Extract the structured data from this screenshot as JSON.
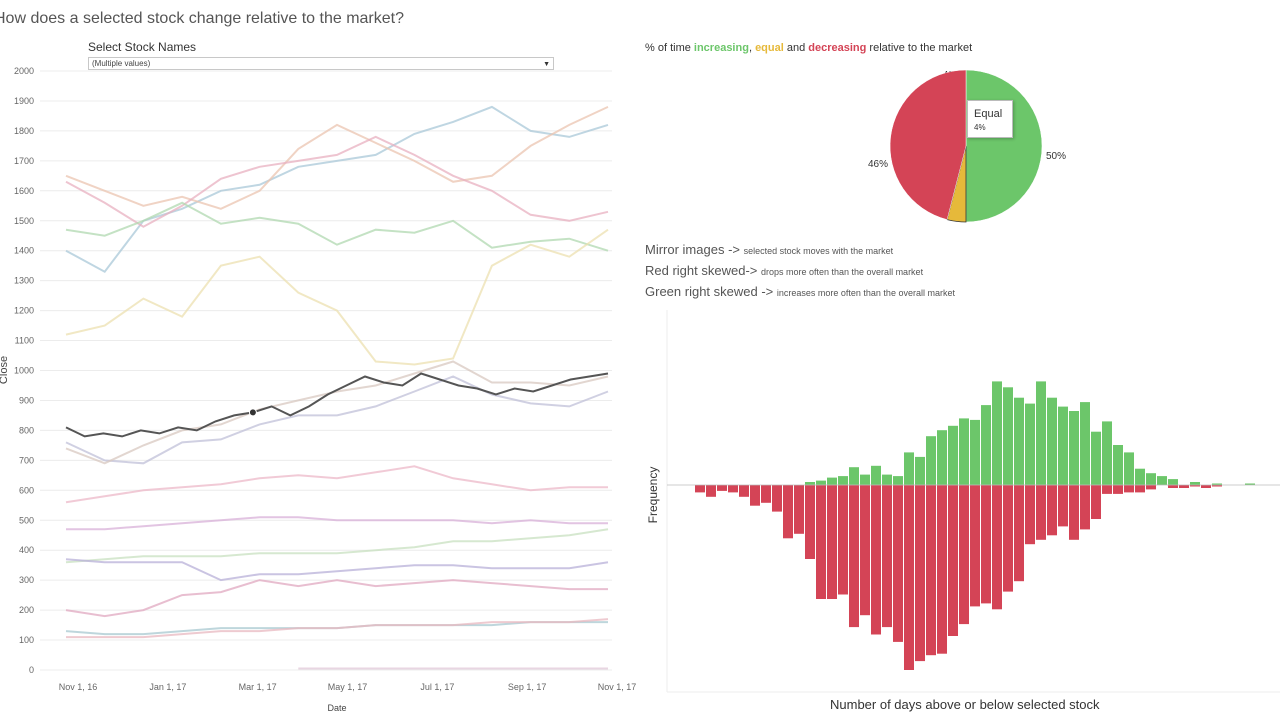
{
  "title": "How does a selected stock change relative to the market?",
  "filter": {
    "label": "Select Stock Names",
    "value": "(Multiple values)"
  },
  "pie_title": {
    "prefix": "% of time ",
    "inc": "increasing",
    "sep1": ", ",
    "eq": "equal",
    "sep2": " and ",
    "dec": "decreasing",
    "suffix": " relative to the market"
  },
  "tooltip": {
    "label": "Equal",
    "value": "4%"
  },
  "notes": [
    {
      "big": "Mirror images -> ",
      "small": "selected stock moves with the market"
    },
    {
      "big": "Red right skewed-> ",
      "small": "drops more often than the overall market"
    },
    {
      "big": "Green right skewed -> ",
      "small": "increases more often than the overall market"
    }
  ],
  "colors": {
    "increasing": "#6cc66a",
    "equal": "#e6b93a",
    "decreasing": "#d44456",
    "selected": "#555555"
  },
  "chart_data": [
    {
      "type": "line",
      "xlabel": "Date",
      "ylabel": "Close",
      "ylim": [
        0,
        2000
      ],
      "y_ticks": [
        "0",
        "100",
        "200",
        "300",
        "400",
        "500",
        "600",
        "700",
        "800",
        "900",
        "1000",
        "1100",
        "1200",
        "1300",
        "1400",
        "1500",
        "1600",
        "1700",
        "1800",
        "1900",
        "2000"
      ],
      "x_ticks": [
        "Nov 1, 16",
        "Jan 1, 17",
        "Mar 1, 17",
        "May 1, 17",
        "Jul 1, 17",
        "Sep 1, 17",
        "Nov 1, 17"
      ],
      "grid": true,
      "series": [
        {
          "color": "#aac8d8",
          "values": [
            1400,
            1330,
            1500,
            1540,
            1600,
            1620,
            1680,
            1700,
            1720,
            1790,
            1830,
            1880,
            1800,
            1780,
            1820
          ]
        },
        {
          "color": "#ebc4b0",
          "values": [
            1650,
            1600,
            1550,
            1580,
            1540,
            1600,
            1740,
            1820,
            1760,
            1700,
            1630,
            1650,
            1750,
            1820,
            1880
          ]
        },
        {
          "color": "#e8b0c0",
          "values": [
            1630,
            1560,
            1480,
            1550,
            1640,
            1680,
            1700,
            1720,
            1780,
            1720,
            1650,
            1600,
            1520,
            1500,
            1530
          ]
        },
        {
          "color": "#b0d8b0",
          "values": [
            1470,
            1450,
            1500,
            1560,
            1490,
            1510,
            1490,
            1420,
            1470,
            1460,
            1500,
            1410,
            1430,
            1440,
            1400
          ]
        },
        {
          "color": "#ece0b0",
          "values": [
            1120,
            1150,
            1240,
            1180,
            1350,
            1380,
            1260,
            1200,
            1030,
            1020,
            1040,
            1350,
            1420,
            1380,
            1470
          ]
        },
        {
          "color": "#c0c0d8",
          "values": [
            760,
            700,
            690,
            760,
            770,
            820,
            850,
            850,
            880,
            930,
            980,
            920,
            890,
            880,
            930
          ]
        },
        {
          "color": "#d8c8c0",
          "values": [
            740,
            690,
            750,
            800,
            820,
            870,
            900,
            930,
            950,
            990,
            1030,
            960,
            960,
            950,
            980
          ]
        },
        {
          "color": "#ecb8c8",
          "values": [
            560,
            580,
            600,
            610,
            620,
            640,
            650,
            640,
            660,
            680,
            640,
            620,
            600,
            610,
            610
          ]
        },
        {
          "color": "#d8b0d8",
          "values": [
            470,
            470,
            480,
            490,
            500,
            510,
            510,
            500,
            500,
            500,
            500,
            490,
            500,
            490,
            490
          ]
        },
        {
          "color": "#c8e0c0",
          "values": [
            360,
            370,
            380,
            380,
            380,
            390,
            390,
            390,
            400,
            410,
            430,
            430,
            440,
            450,
            470
          ]
        },
        {
          "color": "#b8b0d8",
          "values": [
            370,
            360,
            360,
            360,
            300,
            320,
            320,
            330,
            340,
            350,
            350,
            340,
            340,
            340,
            360
          ]
        },
        {
          "color": "#e0a8c0",
          "values": [
            200,
            180,
            200,
            250,
            260,
            300,
            280,
            300,
            280,
            290,
            300,
            290,
            280,
            270,
            270
          ]
        },
        {
          "color": "#a8c8d0",
          "values": [
            130,
            120,
            120,
            130,
            140,
            140,
            140,
            140,
            150,
            150,
            150,
            150,
            160,
            160,
            160
          ]
        },
        {
          "color": "#e8b8c0",
          "values": [
            110,
            110,
            110,
            120,
            130,
            130,
            140,
            140,
            150,
            150,
            150,
            160,
            160,
            160,
            170
          ]
        },
        {
          "color": "#e0c8d8",
          "values": [
            null,
            null,
            null,
            null,
            null,
            null,
            5,
            5,
            5,
            5,
            5,
            5,
            5,
            5,
            5
          ]
        }
      ],
      "selected_series": {
        "color": "#555555",
        "values": [
          810,
          780,
          790,
          780,
          800,
          790,
          810,
          800,
          830,
          850,
          860,
          880,
          850,
          880,
          920,
          950,
          980,
          960,
          950,
          990,
          970,
          950,
          940,
          920,
          940,
          930,
          950,
          970,
          980,
          990
        ]
      }
    },
    {
      "type": "pie",
      "labels": [
        "Increasing",
        "Equal",
        "Decreasing"
      ],
      "values": [
        50,
        4,
        46
      ],
      "value_labels": [
        "50%",
        "4%",
        "46%"
      ]
    },
    {
      "type": "bar",
      "title": "",
      "xlabel": "Number of days above or below selected stock",
      "ylabel": "Frequency",
      "series": [
        {
          "color": "#6cc66a",
          "values": [
            0,
            0,
            0,
            0,
            0,
            0,
            0,
            0,
            0,
            0,
            2,
            3,
            5,
            6,
            12,
            7,
            13,
            7,
            6,
            22,
            19,
            33,
            37,
            40,
            45,
            44,
            54,
            70,
            66,
            59,
            55,
            70,
            59,
            53,
            50,
            56,
            36,
            43,
            27,
            22,
            11,
            8,
            6,
            4,
            0,
            2,
            0,
            1,
            0,
            0,
            1
          ]
        },
        {
          "color": "#d44456",
          "values": [
            -5,
            -8,
            -4,
            -5,
            -8,
            -14,
            -12,
            -18,
            -36,
            -33,
            -50,
            -77,
            -77,
            -74,
            -96,
            -88,
            -101,
            -96,
            -106,
            -125,
            -119,
            -115,
            -114,
            -102,
            -94,
            -82,
            -80,
            -84,
            -72,
            -65,
            -40,
            -37,
            -34,
            -28,
            -37,
            -30,
            -23,
            -6,
            -6,
            -5,
            -5,
            -3,
            0,
            -2,
            -2,
            -1,
            -2,
            -1,
            0,
            0,
            0
          ]
        }
      ]
    }
  ]
}
